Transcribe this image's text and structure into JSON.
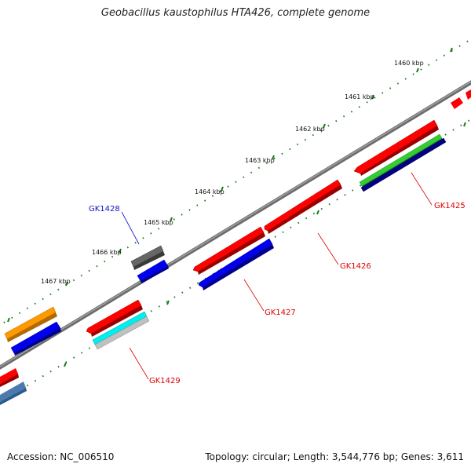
{
  "title": "Geobacillus kaustophilus HTA426, complete genome",
  "footer": {
    "accession": "Accession: NC_006510",
    "summary": "Topology: circular; Length: 3,544,776 bp; Genes: 3,611"
  },
  "kbp_labels": [
    "1460 kbp",
    "1461 kbp",
    "1462 kbp",
    "1463 kbp",
    "1464 kbp",
    "1465 kbp",
    "1466 kbp",
    "1467 kbp"
  ],
  "gene_labels": [
    {
      "name": "GK1428",
      "color": "#1010cc"
    },
    {
      "name": "GK1425",
      "color": "#dd0000"
    },
    {
      "name": "GK1426",
      "color": "#dd0000"
    },
    {
      "name": "GK1427",
      "color": "#dd0000"
    },
    {
      "name": "GK1429",
      "color": "#dd0000"
    }
  ],
  "colors": {
    "backbone": "#808080",
    "tick": "#1a7a1a",
    "red": "#ff0000",
    "blue": "#0000ee",
    "green": "#33cc33",
    "navy": "#000080",
    "orange": "#ff9900",
    "cyan": "#00eeee",
    "silver": "#c0c0c0",
    "gray": "#666666",
    "steelblue": "#4a7ab0"
  }
}
